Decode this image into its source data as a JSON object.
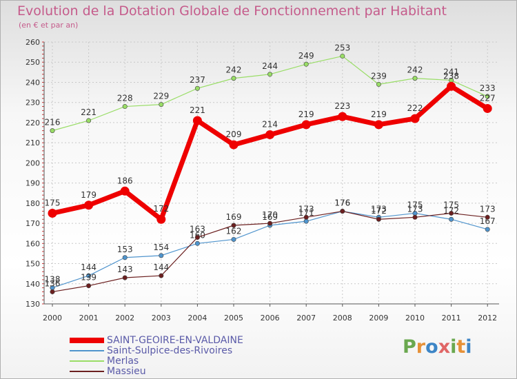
{
  "title": "Evolution de la Dotation Globale de Fonctionnement par Habitant",
  "subtitle": "(en € et par an)",
  "logo": [
    "P",
    "r",
    "o",
    "x",
    "i",
    "t",
    "i"
  ],
  "logo_colors": [
    "#6aa84f",
    "#e69138",
    "#3d85c6",
    "#e06666",
    "#6aa84f",
    "#e69138",
    "#3d85c6"
  ],
  "chart_data": {
    "type": "line",
    "title": "Evolution de la Dotation Globale de Fonctionnement par Habitant",
    "ylabel": "(en € et par an)",
    "ylim": [
      130,
      260
    ],
    "yticks": [
      130,
      140,
      150,
      160,
      170,
      180,
      190,
      200,
      210,
      220,
      230,
      240,
      250,
      260
    ],
    "categories": [
      "2000",
      "2001",
      "2002",
      "2003",
      "2004",
      "2005",
      "2006",
      "2007",
      "2008",
      "2009",
      "2010",
      "2011",
      "2012"
    ],
    "series": [
      {
        "name": "SAINT-GEOIRE-EN-VALDAINE",
        "color": "#ee0000",
        "emphasis": true,
        "values": [
          175,
          179,
          186,
          172,
          221,
          209,
          214,
          219,
          223,
          219,
          222,
          238,
          227
        ]
      },
      {
        "name": "Saint-Sulpice-des-Rivoires",
        "color": "#4f94cd",
        "values": [
          138,
          144,
          153,
          154,
          160,
          162,
          169,
          171,
          176,
          173,
          175,
          172,
          167
        ]
      },
      {
        "name": "Merlas",
        "color": "#99dd66",
        "values": [
          216,
          221,
          228,
          229,
          237,
          242,
          244,
          249,
          253,
          239,
          242,
          241,
          233
        ]
      },
      {
        "name": "Massieu",
        "color": "#6b1f1f",
        "values": [
          136,
          139,
          143,
          144,
          163,
          169,
          170,
          173,
          176,
          172,
          173,
          175,
          173
        ]
      }
    ]
  }
}
